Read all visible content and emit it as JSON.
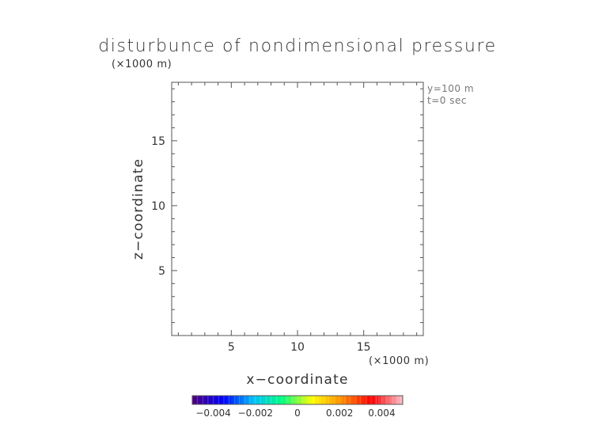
{
  "chart_data": {
    "type": "heatmap",
    "title": "disturbunce of nondimensional pressure",
    "xlabel": "x−coordinate",
    "ylabel": "z−coordinate",
    "x_unit": "(×1000 m)",
    "y_unit": "(×1000 m)",
    "annotations": [
      "y=100 m",
      "t=0 sec"
    ],
    "xlim": [
      0.5,
      19.5
    ],
    "ylim": [
      0.0,
      19.5
    ],
    "x_ticks": [
      5,
      10,
      15
    ],
    "y_ticks": [
      5,
      10,
      15
    ],
    "values": [],
    "colorbar": {
      "range": [
        -0.005,
        0.005
      ],
      "ticks": [
        -0.004,
        -0.002,
        0,
        0.002,
        0.004
      ],
      "tick_labels": [
        "−0.004",
        "−0.002",
        "0",
        "0.002",
        "0.004"
      ],
      "colormap": [
        "#4b0082",
        "#0000ff",
        "#00bfff",
        "#00ff7f",
        "#ffff00",
        "#ff8c00",
        "#ff0000",
        "#ffb6c1"
      ]
    },
    "grid": false
  }
}
